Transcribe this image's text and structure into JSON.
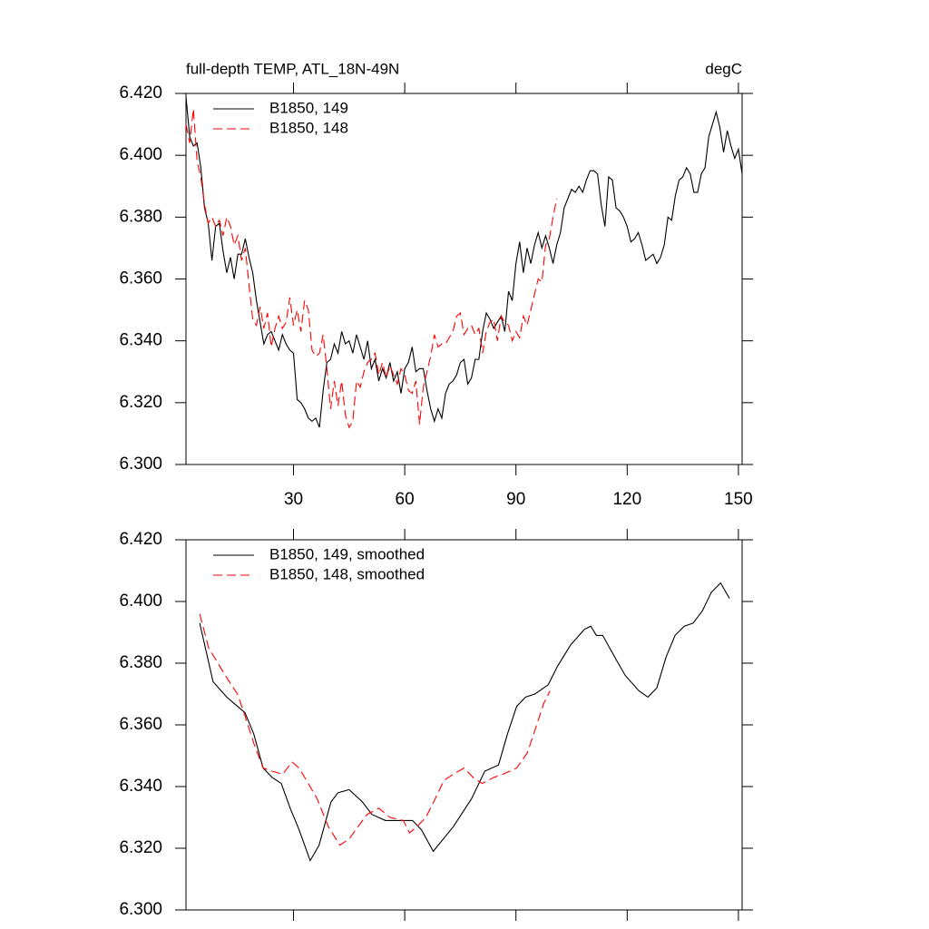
{
  "chart_data": [
    {
      "type": "line",
      "title_left": "full-depth TEMP, ATL_18N-49N",
      "title_right": "degC",
      "xlim": [
        1,
        151
      ],
      "ylim": [
        6.3,
        6.42
      ],
      "xticks": [
        30,
        60,
        90,
        120,
        150
      ],
      "x_tick_labels": true,
      "yticks": [
        {
          "value": 6.3,
          "label": "6.300"
        },
        {
          "value": 6.32,
          "label": "6.320"
        },
        {
          "value": 6.34,
          "label": "6.340"
        },
        {
          "value": 6.36,
          "label": "6.360"
        },
        {
          "value": 6.38,
          "label": "6.380"
        },
        {
          "value": 6.4,
          "label": "6.400"
        },
        {
          "value": 6.42,
          "label": "6.420"
        }
      ],
      "legend": "top-left",
      "series": [
        {
          "name": "B1850, 149",
          "color": "#000000",
          "dash": "solid",
          "x": [
            1,
            2,
            3,
            4,
            5,
            6,
            7,
            8,
            9,
            10,
            11,
            12,
            13,
            14,
            15,
            16,
            17,
            18,
            19,
            20,
            21,
            22,
            23,
            24,
            25,
            26,
            27,
            28,
            29,
            30,
            31,
            32,
            33,
            34,
            35,
            36,
            37,
            38,
            39,
            40,
            41,
            42,
            43,
            44,
            45,
            46,
            47,
            48,
            49,
            50,
            51,
            52,
            53,
            54,
            55,
            56,
            57,
            58,
            59,
            60,
            61,
            62,
            63,
            64,
            65,
            66,
            67,
            68,
            69,
            70,
            71,
            72,
            73,
            74,
            75,
            76,
            77,
            78,
            79,
            80,
            81,
            82,
            83,
            84,
            85,
            86,
            87,
            88,
            89,
            90,
            91,
            92,
            93,
            94,
            95,
            96,
            97,
            98,
            99,
            100,
            101,
            102,
            103,
            104,
            105,
            106,
            107,
            108,
            109,
            110,
            111,
            112,
            113,
            114,
            115,
            116,
            117,
            118,
            119,
            120,
            121,
            122,
            123,
            124,
            125,
            126,
            127,
            128,
            129,
            130,
            131,
            132,
            133,
            134,
            135,
            136,
            137,
            138,
            139,
            140,
            141,
            142,
            143,
            144,
            145,
            146,
            147,
            148,
            149,
            150,
            151
          ],
          "values": [
            6.419,
            6.406,
            6.403,
            6.404,
            6.396,
            6.383,
            6.378,
            6.366,
            6.377,
            6.378,
            6.369,
            6.362,
            6.367,
            6.36,
            6.368,
            6.368,
            6.373,
            6.367,
            6.362,
            6.353,
            6.346,
            6.339,
            6.342,
            6.343,
            6.34,
            6.337,
            6.342,
            6.339,
            6.337,
            6.336,
            6.321,
            6.32,
            6.318,
            6.315,
            6.314,
            6.315,
            6.312,
            6.324,
            6.333,
            6.334,
            6.339,
            6.336,
            6.343,
            6.339,
            6.34,
            6.336,
            6.342,
            6.338,
            6.334,
            6.34,
            6.331,
            6.334,
            6.327,
            6.331,
            6.328,
            6.333,
            6.327,
            6.33,
            6.323,
            6.331,
            6.333,
            6.338,
            6.33,
            6.331,
            6.331,
            6.324,
            6.318,
            6.314,
            6.318,
            6.315,
            6.323,
            6.326,
            6.327,
            6.329,
            6.333,
            6.334,
            6.326,
            6.328,
            6.334,
            6.334,
            6.343,
            6.349,
            6.347,
            6.344,
            6.346,
            6.348,
            6.343,
            6.356,
            6.353,
            6.365,
            6.372,
            6.362,
            6.37,
            6.365,
            6.371,
            6.375,
            6.37,
            6.374,
            6.37,
            6.365,
            6.371,
            6.375,
            6.383,
            6.386,
            6.389,
            6.388,
            6.39,
            6.388,
            6.392,
            6.395,
            6.395,
            6.394,
            6.384,
            6.377,
            6.393,
            6.392,
            6.383,
            6.382,
            6.38,
            6.377,
            6.372,
            6.373,
            6.375,
            6.371,
            6.366,
            6.367,
            6.368,
            6.365,
            6.367,
            6.371,
            6.38,
            6.379,
            6.387,
            6.392,
            6.393,
            6.396,
            6.394,
            6.388,
            6.388,
            6.394,
            6.396,
            6.406,
            6.41,
            6.414,
            6.409,
            6.401,
            6.408,
            6.403,
            6.399,
            6.402,
            6.394
          ]
        },
        {
          "name": "B1850, 148",
          "color": "#ff0000",
          "dash": "dashed",
          "x": [
            1,
            2,
            3,
            4,
            5,
            6,
            7,
            8,
            9,
            10,
            11,
            12,
            13,
            14,
            15,
            16,
            17,
            18,
            19,
            20,
            21,
            22,
            23,
            24,
            25,
            26,
            27,
            28,
            29,
            30,
            31,
            32,
            33,
            34,
            35,
            36,
            37,
            38,
            39,
            40,
            41,
            42,
            43,
            44,
            45,
            46,
            47,
            48,
            49,
            50,
            51,
            52,
            53,
            54,
            55,
            56,
            57,
            58,
            59,
            60,
            61,
            62,
            63,
            64,
            65,
            66,
            67,
            68,
            69,
            70,
            71,
            72,
            73,
            74,
            75,
            76,
            77,
            78,
            79,
            80,
            81,
            82,
            83,
            84,
            85,
            86,
            87,
            88,
            89,
            90,
            91,
            92,
            93,
            94,
            95,
            96,
            97,
            98,
            99,
            100,
            101
          ],
          "values": [
            6.41,
            6.404,
            6.415,
            6.398,
            6.393,
            6.384,
            6.378,
            6.38,
            6.377,
            6.379,
            6.374,
            6.38,
            6.377,
            6.371,
            6.374,
            6.366,
            6.37,
            6.358,
            6.347,
            6.345,
            6.351,
            6.344,
            6.349,
            6.338,
            6.344,
            6.348,
            6.344,
            6.346,
            6.354,
            6.345,
            6.35,
            6.343,
            6.353,
            6.35,
            6.337,
            6.335,
            6.336,
            6.342,
            6.331,
            6.318,
            6.327,
            6.319,
            6.327,
            6.316,
            6.312,
            6.314,
            6.327,
            6.325,
            6.33,
            6.333,
            6.334,
            6.336,
            6.329,
            6.333,
            6.328,
            6.332,
            6.329,
            6.326,
            6.331,
            6.329,
            6.324,
            6.323,
            6.327,
            6.313,
            6.325,
            6.33,
            6.335,
            6.342,
            6.338,
            6.339,
            6.339,
            6.341,
            6.343,
            6.348,
            6.349,
            6.342,
            6.344,
            6.345,
            6.342,
            6.344,
            6.336,
            6.343,
            6.346,
            6.347,
            6.34,
            6.348,
            6.346,
            6.345,
            6.34,
            6.343,
            6.341,
            6.348,
            6.345,
            6.35,
            6.355,
            6.36,
            6.359,
            6.371,
            6.373,
            6.38,
            6.386
          ]
        }
      ]
    },
    {
      "type": "line",
      "xlim": [
        1,
        151
      ],
      "ylim": [
        6.3,
        6.42
      ],
      "xticks": [
        30,
        60,
        90,
        120,
        150
      ],
      "x_tick_labels": false,
      "yticks": [
        {
          "value": 6.3,
          "label": "6.300"
        },
        {
          "value": 6.32,
          "label": "6.320"
        },
        {
          "value": 6.34,
          "label": "6.340"
        },
        {
          "value": 6.36,
          "label": "6.360"
        },
        {
          "value": 6.38,
          "label": "6.380"
        },
        {
          "value": 6.4,
          "label": "6.400"
        },
        {
          "value": 6.42,
          "label": "6.420"
        }
      ],
      "legend": "top-left",
      "series": [
        {
          "name": "B1850, 149, smoothed",
          "color": "#000000",
          "dash": "solid",
          "x": [
            4.7,
            6.6,
            8.3,
            12.0,
            14.9,
            16.9,
            19.3,
            21.8,
            24.2,
            26.7,
            29.1,
            31.5,
            34.5,
            36.9,
            40.1,
            42.0,
            45.0,
            48.6,
            51.1,
            54.8,
            58.4,
            62.1,
            64.5,
            67.7,
            73.1,
            78.0,
            81.6,
            85.3,
            87.7,
            90.2,
            92.6,
            95.1,
            98.7,
            101.2,
            104.8,
            108.5,
            110.2,
            111.7,
            113.4,
            117.1,
            119.5,
            123.2,
            125.6,
            128.0,
            130.5,
            132.9,
            135.4,
            137.8,
            140.3,
            142.7,
            145.2,
            147.6
          ],
          "values": [
            6.393,
            6.383,
            6.374,
            6.369,
            6.366,
            6.364,
            6.357,
            6.346,
            6.343,
            6.341,
            6.333,
            6.326,
            6.316,
            6.321,
            6.335,
            6.338,
            6.339,
            6.335,
            6.331,
            6.329,
            6.329,
            6.329,
            6.326,
            6.319,
            6.327,
            6.336,
            6.345,
            6.347,
            6.357,
            6.366,
            6.369,
            6.37,
            6.373,
            6.379,
            6.386,
            6.391,
            6.392,
            6.389,
            6.389,
            6.381,
            6.376,
            6.371,
            6.369,
            6.372,
            6.382,
            6.389,
            6.392,
            6.393,
            6.397,
            6.403,
            6.406,
            6.401
          ]
        },
        {
          "name": "B1850, 148, smoothed",
          "color": "#ff0000",
          "dash": "dashed",
          "x": [
            4.7,
            7.1,
            9.6,
            13.2,
            14.9,
            16.9,
            19.3,
            21.8,
            24.2,
            27.1,
            29.6,
            31.5,
            34.0,
            36.4,
            39.4,
            42.5,
            45.0,
            47.4,
            49.9,
            53.0,
            56.0,
            59.6,
            61.3,
            63.3,
            65.7,
            68.2,
            70.6,
            73.1,
            76.0,
            78.4,
            80.9,
            84.1,
            86.5,
            90.2,
            93.1,
            95.6,
            97.5,
            99.2
          ],
          "values": [
            6.396,
            6.385,
            6.38,
            6.373,
            6.37,
            6.363,
            6.354,
            6.346,
            6.345,
            6.344,
            6.348,
            6.346,
            6.341,
            6.336,
            6.327,
            6.321,
            6.323,
            6.327,
            6.331,
            6.333,
            6.33,
            6.329,
            6.325,
            6.327,
            6.33,
            6.336,
            6.342,
            6.344,
            6.346,
            6.343,
            6.341,
            6.343,
            6.344,
            6.346,
            6.351,
            6.36,
            6.367,
            6.371
          ]
        }
      ]
    }
  ]
}
